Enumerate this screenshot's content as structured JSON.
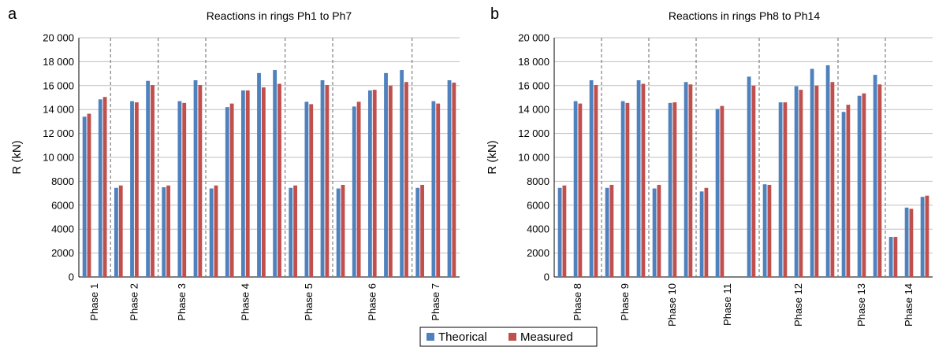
{
  "colors": {
    "theorical": "#4f81bd",
    "measured": "#c0504d",
    "grid": "#bfbfbf",
    "separator": "#7f7f7f"
  },
  "legend": {
    "position": "bottom",
    "items": [
      "Theorical",
      "Measured"
    ]
  },
  "chart_data": [
    {
      "panel": "a",
      "type": "bar",
      "title": "Reactions in rings Ph1 to Ph7",
      "ylabel": "R (kN)",
      "xlabel": "",
      "ylim": [
        0,
        20000
      ],
      "yticks": [
        0,
        2000,
        4000,
        6000,
        8000,
        10000,
        12000,
        14000,
        16000,
        18000,
        20000
      ],
      "ytick_labels": [
        "0",
        "2000",
        "4000",
        "6000",
        "8000",
        "10 000",
        "12 000",
        "14 000",
        "16 000",
        "18 000",
        "20 000"
      ],
      "grid": true,
      "phases": [
        {
          "label": "Phase 1",
          "pairs": [
            [
              13400,
              13650
            ],
            [
              14850,
              15050
            ]
          ]
        },
        {
          "label": "Phase 2",
          "pairs": [
            [
              7450,
              7650
            ],
            [
              14700,
              14600
            ],
            [
              16400,
              16050
            ]
          ]
        },
        {
          "label": "Phase 3",
          "pairs": [
            [
              7500,
              7650
            ],
            [
              14700,
              14550
            ],
            [
              16450,
              16050
            ]
          ]
        },
        {
          "label": "Phase 4",
          "pairs": [
            [
              7400,
              7650
            ],
            [
              14200,
              14500
            ],
            [
              15600,
              15600
            ],
            [
              17050,
              15850
            ],
            [
              17300,
              16150
            ]
          ]
        },
        {
          "label": "Phase 5",
          "pairs": [
            [
              7450,
              7650
            ],
            [
              14650,
              14450
            ],
            [
              16450,
              16050
            ]
          ]
        },
        {
          "label": "Phase 6",
          "pairs": [
            [
              7400,
              7700
            ],
            [
              14250,
              14650
            ],
            [
              15600,
              15650
            ],
            [
              17050,
              16000
            ],
            [
              17300,
              16300
            ]
          ]
        },
        {
          "label": "Phase 7",
          "pairs": [
            [
              7450,
              7700
            ],
            [
              14700,
              14500
            ],
            [
              16450,
              16250
            ]
          ]
        }
      ],
      "series": [
        {
          "name": "Theorical"
        },
        {
          "name": "Measured"
        }
      ]
    },
    {
      "panel": "b",
      "type": "bar",
      "title": "Reactions in rings Ph8 to Ph14",
      "ylabel": "R (kN)",
      "xlabel": "",
      "ylim": [
        0,
        20000
      ],
      "yticks": [
        0,
        2000,
        4000,
        6000,
        8000,
        10000,
        12000,
        14000,
        16000,
        18000,
        20000
      ],
      "ytick_labels": [
        "0",
        "2000",
        "4000",
        "6000",
        "8000",
        "10 000",
        "12 000",
        "14 000",
        "16 000",
        "18 000",
        "20 000"
      ],
      "grid": true,
      "phases": [
        {
          "label": "Phase 8",
          "pairs": [
            [
              7450,
              7650
            ],
            [
              14700,
              14500
            ],
            [
              16450,
              16050
            ]
          ]
        },
        {
          "label": "Phase 9",
          "pairs": [
            [
              7450,
              7700
            ],
            [
              14700,
              14550
            ],
            [
              16450,
              16150
            ]
          ]
        },
        {
          "label": "Phase 10",
          "pairs": [
            [
              7400,
              7700
            ],
            [
              14550,
              14600
            ],
            [
              16300,
              16100
            ]
          ]
        },
        {
          "label": "Phase 11",
          "pairs": [
            [
              7150,
              7450
            ],
            [
              14050,
              14300
            ],
            [
              0,
              0
            ],
            [
              16750,
              16000
            ]
          ]
        },
        {
          "label": "Phase 12",
          "pairs": [
            [
              7750,
              7700
            ],
            [
              14600,
              14600
            ],
            [
              15950,
              15650
            ],
            [
              17400,
              16000
            ],
            [
              17700,
              16300
            ]
          ]
        },
        {
          "label": "Phase 13",
          "pairs": [
            [
              13800,
              14400
            ],
            [
              15150,
              15350
            ],
            [
              16900,
              16100
            ]
          ]
        },
        {
          "label": "Phase 14",
          "pairs": [
            [
              3350,
              3350
            ],
            [
              5800,
              5700
            ],
            [
              6700,
              6800
            ]
          ]
        }
      ],
      "series": [
        {
          "name": "Theorical"
        },
        {
          "name": "Measured"
        }
      ]
    }
  ]
}
